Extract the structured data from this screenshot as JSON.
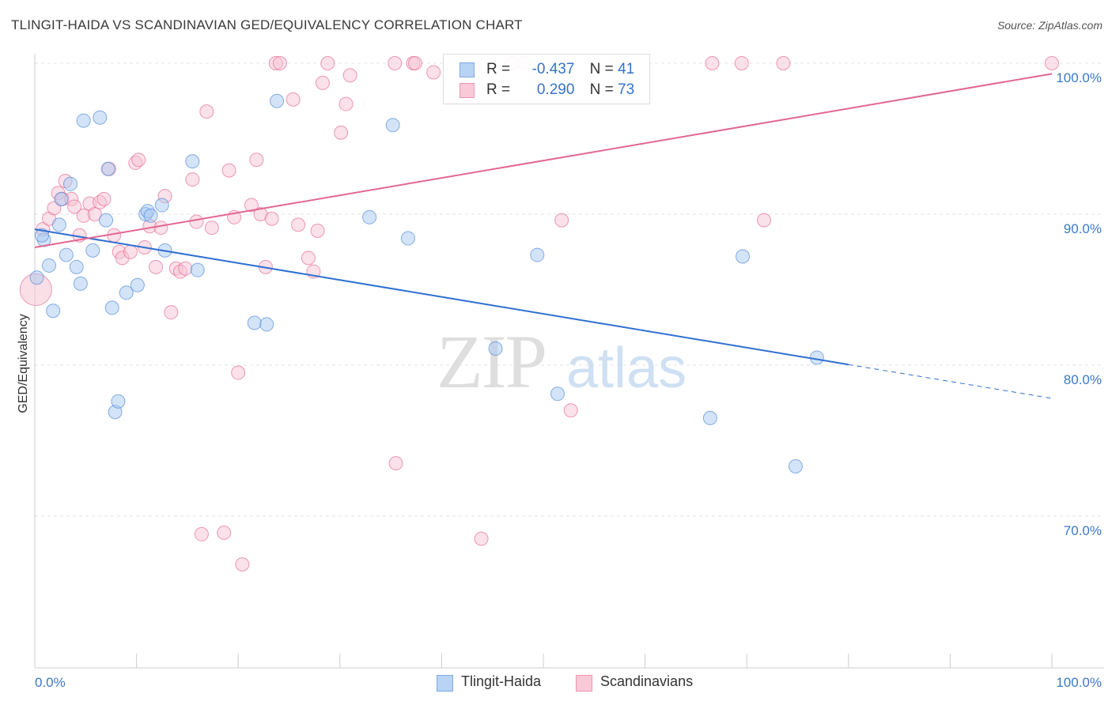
{
  "header": {
    "title": "TLINGIT-HAIDA VS SCANDINAVIAN GED/EQUIVALENCY CORRELATION CHART",
    "source": "Source: ZipAtlas.com"
  },
  "watermark": {
    "zip": "ZIP",
    "atlas": "atlas"
  },
  "legend": {
    "rows": [
      {
        "r_label": "R =",
        "r_value": "-0.437",
        "n_label": "N =",
        "n_value": "41",
        "color": "#9fc2ef"
      },
      {
        "r_label": "R =",
        "r_value": "0.290",
        "n_label": "N =",
        "n_value": "73",
        "color": "#f6b3c8"
      }
    ]
  },
  "bottom_legend": {
    "items": [
      {
        "label": "Tlingit-Haida",
        "color": "#9fc2ef"
      },
      {
        "label": "Scandinavians",
        "color": "#f6b3c8"
      }
    ]
  },
  "chart_data": {
    "type": "scatter",
    "title": "TLINGIT-HAIDA VS SCANDINAVIAN GED/EQUIVALENCY CORRELATION CHART",
    "xlabel": "",
    "ylabel": "GED/Equivalency",
    "xlim": [
      0,
      100
    ],
    "ylim": [
      60,
      100
    ],
    "x_tick_labels": [
      "0.0%",
      "100.0%"
    ],
    "y_ticks": [
      70,
      80,
      90,
      100
    ],
    "y_tick_labels": [
      "70.0%",
      "80.0%",
      "90.0%",
      "100.0%"
    ],
    "grid": true,
    "legend_position": "top-center",
    "series": [
      {
        "name": "Tlingit-Haida",
        "color": "#4a86d6",
        "fill": "#a9c9f2",
        "r": -0.437,
        "n": 41,
        "trend": {
          "x0": 0,
          "y0": 89.0,
          "x1": 100,
          "y1": 77.8,
          "solid_until_x": 80
        },
        "points": [
          [
            0.2,
            85.8
          ],
          [
            0.9,
            88.3
          ],
          [
            0.7,
            88.6
          ],
          [
            1.4,
            86.6
          ],
          [
            1.8,
            83.6
          ],
          [
            2.4,
            89.3
          ],
          [
            2.6,
            91.0
          ],
          [
            3.1,
            87.3
          ],
          [
            3.5,
            92.0
          ],
          [
            4.1,
            86.5
          ],
          [
            4.5,
            85.4
          ],
          [
            4.8,
            96.2
          ],
          [
            5.7,
            87.6
          ],
          [
            6.4,
            96.4
          ],
          [
            7.0,
            89.6
          ],
          [
            7.2,
            93.0
          ],
          [
            7.6,
            83.8
          ],
          [
            7.9,
            76.9
          ],
          [
            8.2,
            77.6
          ],
          [
            9.0,
            84.8
          ],
          [
            10.1,
            85.3
          ],
          [
            10.9,
            90.0
          ],
          [
            11.1,
            90.2
          ],
          [
            11.4,
            89.9
          ],
          [
            12.5,
            90.6
          ],
          [
            12.8,
            87.6
          ],
          [
            15.5,
            93.5
          ],
          [
            16.0,
            86.3
          ],
          [
            21.6,
            82.8
          ],
          [
            22.8,
            82.7
          ],
          [
            23.8,
            97.5
          ],
          [
            32.9,
            89.8
          ],
          [
            35.2,
            95.9
          ],
          [
            36.7,
            88.4
          ],
          [
            45.3,
            81.1
          ],
          [
            49.4,
            87.3
          ],
          [
            51.4,
            78.1
          ],
          [
            66.4,
            76.5
          ],
          [
            69.6,
            87.2
          ],
          [
            76.9,
            80.5
          ],
          [
            74.8,
            73.3
          ]
        ]
      },
      {
        "name": "Scandinavians",
        "color": "#e2678f",
        "fill": "#f8c4d4",
        "r": 0.29,
        "n": 73,
        "trend": {
          "x0": 0,
          "y0": 87.8,
          "x1": 100,
          "y1": 99.3
        },
        "points": [
          [
            0.1,
            85.0
          ],
          [
            0.8,
            89.0
          ],
          [
            1.4,
            89.7
          ],
          [
            1.9,
            90.4
          ],
          [
            2.3,
            91.4
          ],
          [
            2.7,
            91.0
          ],
          [
            3.0,
            92.2
          ],
          [
            3.6,
            91.0
          ],
          [
            3.9,
            90.5
          ],
          [
            4.4,
            88.6
          ],
          [
            4.8,
            89.9
          ],
          [
            5.4,
            90.7
          ],
          [
            5.9,
            90.0
          ],
          [
            6.4,
            90.8
          ],
          [
            6.8,
            91.0
          ],
          [
            7.3,
            93.0
          ],
          [
            7.8,
            88.6
          ],
          [
            8.3,
            87.5
          ],
          [
            8.6,
            87.1
          ],
          [
            9.4,
            87.5
          ],
          [
            9.9,
            93.4
          ],
          [
            10.2,
            93.6
          ],
          [
            10.8,
            87.8
          ],
          [
            11.3,
            89.2
          ],
          [
            11.9,
            86.5
          ],
          [
            12.4,
            89.1
          ],
          [
            12.8,
            91.2
          ],
          [
            13.4,
            83.5
          ],
          [
            13.9,
            86.4
          ],
          [
            14.3,
            86.2
          ],
          [
            14.8,
            86.4
          ],
          [
            15.5,
            92.3
          ],
          [
            15.9,
            89.5
          ],
          [
            16.4,
            68.8
          ],
          [
            16.9,
            96.8
          ],
          [
            17.4,
            89.1
          ],
          [
            18.6,
            68.9
          ],
          [
            19.1,
            92.9
          ],
          [
            19.6,
            89.8
          ],
          [
            20.0,
            79.5
          ],
          [
            20.4,
            66.8
          ],
          [
            21.3,
            90.6
          ],
          [
            21.8,
            93.6
          ],
          [
            22.2,
            90.0
          ],
          [
            22.7,
            86.5
          ],
          [
            23.3,
            89.7
          ],
          [
            23.7,
            100.0
          ],
          [
            24.1,
            100.0
          ],
          [
            25.4,
            97.6
          ],
          [
            25.9,
            89.3
          ],
          [
            26.9,
            87.1
          ],
          [
            27.4,
            86.2
          ],
          [
            27.8,
            88.9
          ],
          [
            28.3,
            98.7
          ],
          [
            28.8,
            100.0
          ],
          [
            30.6,
            97.3
          ],
          [
            31.0,
            99.2
          ],
          [
            30.1,
            95.4
          ],
          [
            35.5,
            73.5
          ],
          [
            35.4,
            100.0
          ],
          [
            37.2,
            100.0
          ],
          [
            37.4,
            100.0
          ],
          [
            39.2,
            99.4
          ],
          [
            43.9,
            68.5
          ],
          [
            47.0,
            100.0
          ],
          [
            48.1,
            100.0
          ],
          [
            51.8,
            89.6
          ],
          [
            52.7,
            77.0
          ],
          [
            66.6,
            100.0
          ],
          [
            69.5,
            100.0
          ],
          [
            71.7,
            89.6
          ],
          [
            73.6,
            100.0
          ],
          [
            100.0,
            100.0
          ]
        ]
      }
    ]
  }
}
